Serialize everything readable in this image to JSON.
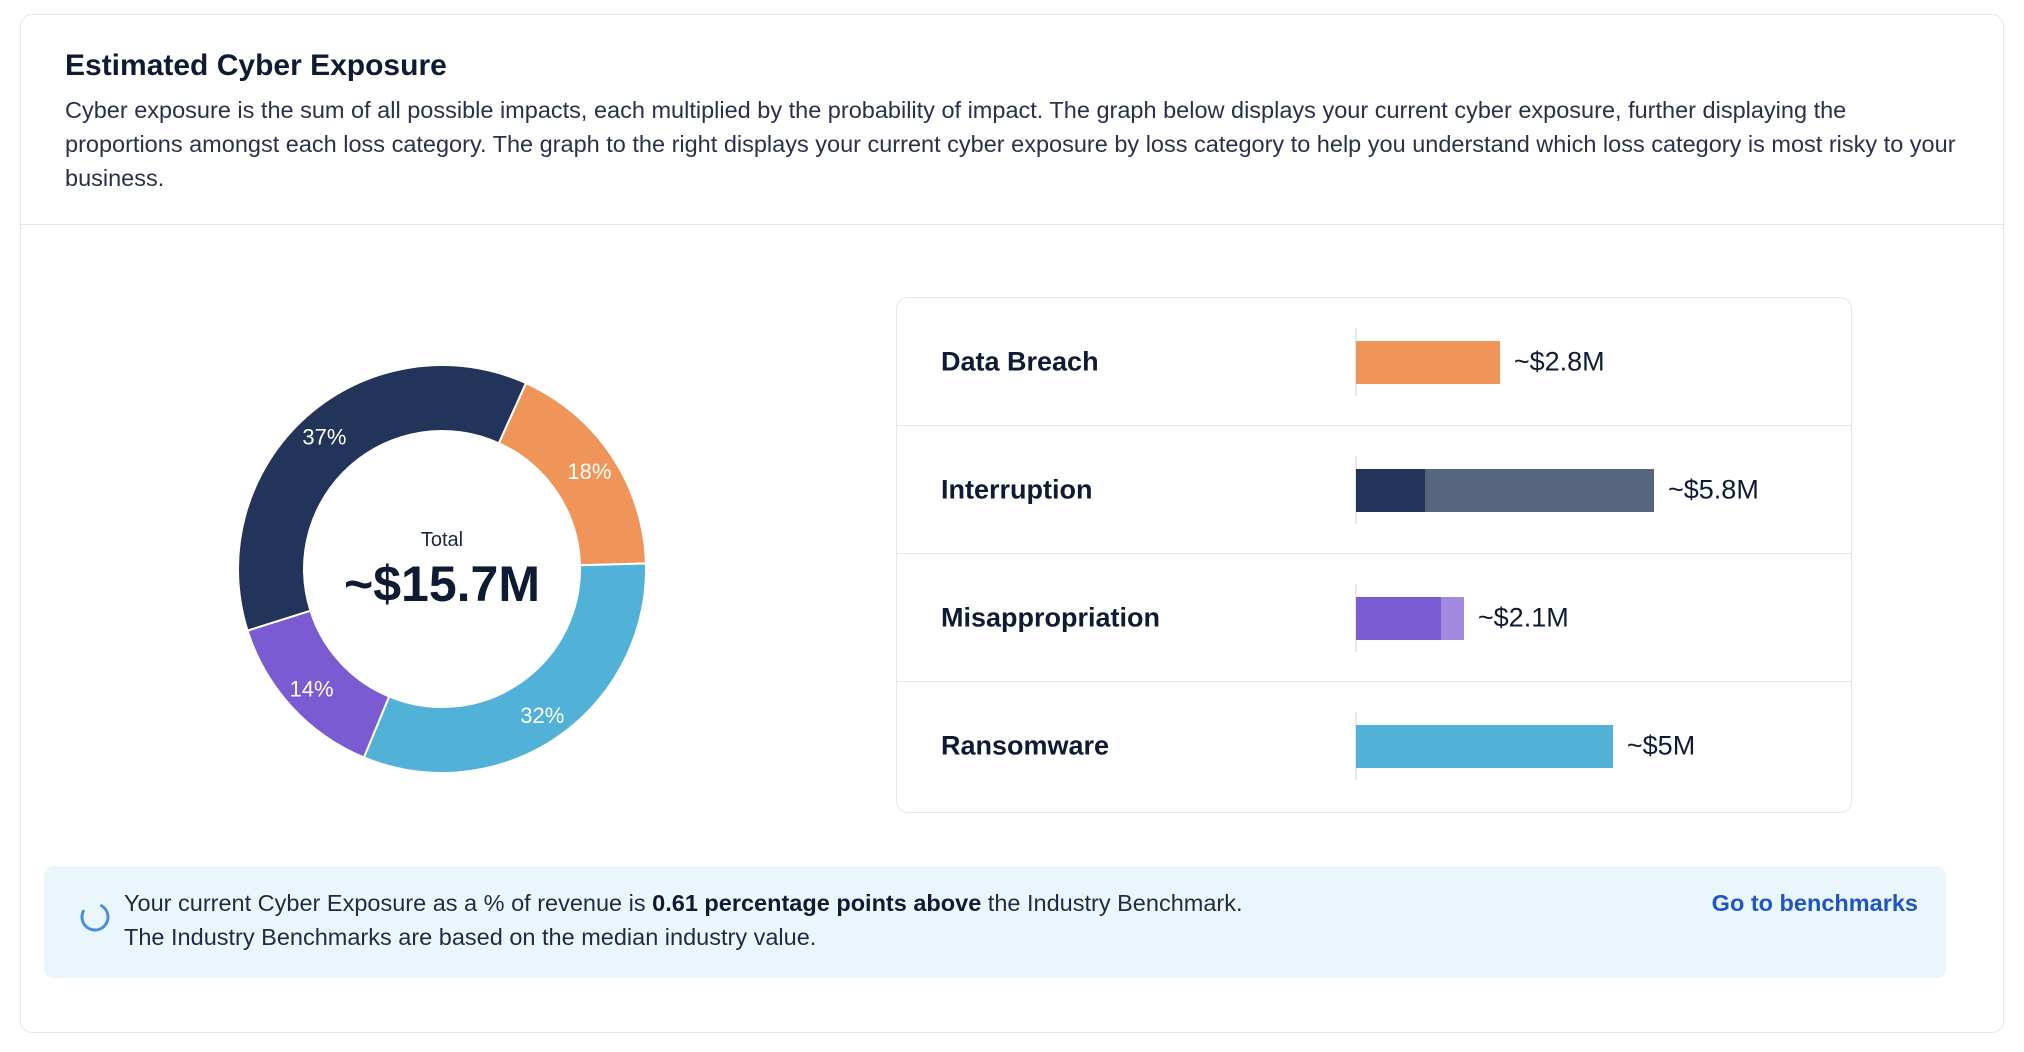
{
  "header": {
    "title": "Estimated Cyber Exposure",
    "description": "Cyber exposure is the sum of all possible impacts, each multiplied by the probability of impact. The graph below displays your current cyber exposure, further displaying the proportions amongst each loss category. The graph to the right displays your current cyber exposure by loss category to help you understand which loss category is most risky to your business."
  },
  "donut": {
    "center_label": "Total",
    "center_value": "~$15.7M"
  },
  "colors": {
    "data_breach": "#f0955a",
    "interruption_dark": "#22345a",
    "interruption_light": "#56667f",
    "misappropriation_dark": "#7a5bd1",
    "misappropriation_light": "#a38ae0",
    "ransomware": "#52b1d6",
    "link": "#1f56c4",
    "notice_bg": "#eaf5fc"
  },
  "chart_data": [
    {
      "type": "pie",
      "variant": "donut",
      "slices": [
        {
          "category": "Data Breach",
          "percent": 18,
          "label": "18%",
          "color": "#f0955a"
        },
        {
          "category": "Ransomware",
          "percent": 32,
          "label": "32%",
          "color": "#52b1d6"
        },
        {
          "category": "Misappropriation",
          "percent": 14,
          "label": "14%",
          "color": "#7a5bd1"
        },
        {
          "category": "Interruption",
          "percent": 37,
          "label": "37%",
          "color": "#22345a"
        }
      ]
    },
    {
      "type": "bar",
      "orientation": "horizontal",
      "rows": [
        {
          "label": "Data Breach",
          "value_label": "~$2.8M",
          "value": 2.8,
          "segments": [
            {
              "value": 2.8,
              "color": "#f0955a"
            }
          ]
        },
        {
          "label": "Interruption",
          "value_label": "~$5.8M",
          "value": 5.8,
          "segments": [
            {
              "value": 1.35,
              "color": "#22345a"
            },
            {
              "value": 4.45,
              "color": "#56667f"
            }
          ]
        },
        {
          "label": "Misappropriation",
          "value_label": "~$2.1M",
          "value": 2.1,
          "segments": [
            {
              "value": 1.65,
              "color": "#7a5bd1"
            },
            {
              "value": 0.45,
              "color": "#a38ae0"
            }
          ]
        },
        {
          "label": "Ransomware",
          "value_label": "~$5M",
          "value": 5.0,
          "segments": [
            {
              "value": 5.0,
              "color": "#52b1d6"
            }
          ]
        }
      ]
    }
  ],
  "notice": {
    "icon": "loading-circle-icon",
    "text_prefix": "Your current Cyber Exposure as a % of revenue is ",
    "text_bold": "0.61 percentage points above",
    "text_suffix": " the Industry Benchmark.",
    "text_line2": "The Industry Benchmarks are based on the median industry value.",
    "link_label": "Go to benchmarks"
  }
}
